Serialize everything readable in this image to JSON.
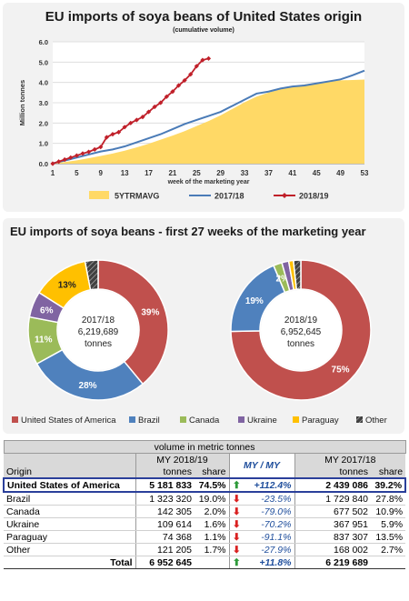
{
  "chart_data": [
    {
      "type": "area",
      "title": "EU imports of soya beans of United States origin",
      "subtitle": "(cumulative volume)",
      "xlabel": "week of the marketing year",
      "ylabel": "Million tonnes",
      "ylim": [
        0,
        6
      ],
      "yticks": [
        "0.0",
        "1.0",
        "2.0",
        "3.0",
        "4.0",
        "5.0",
        "6.0"
      ],
      "xticks": [
        "1",
        "5",
        "9",
        "13",
        "17",
        "21",
        "25",
        "29",
        "33",
        "37",
        "41",
        "45",
        "49",
        "53"
      ],
      "legend_position": "bottom",
      "series": [
        {
          "name": "5YTRMAVG",
          "kind": "area",
          "color": "#ffd966",
          "x": [
            1,
            3,
            5,
            7,
            9,
            11,
            13,
            15,
            17,
            19,
            21,
            23,
            25,
            27,
            29,
            31,
            33,
            35,
            37,
            39,
            41,
            43,
            45,
            47,
            49,
            51,
            53
          ],
          "values": [
            0.02,
            0.08,
            0.16,
            0.27,
            0.38,
            0.5,
            0.64,
            0.8,
            0.98,
            1.18,
            1.38,
            1.6,
            1.85,
            2.1,
            2.38,
            2.7,
            3.02,
            3.3,
            3.5,
            3.66,
            3.78,
            3.9,
            3.98,
            4.05,
            4.1,
            4.12,
            4.14
          ]
        },
        {
          "name": "2017/18",
          "kind": "line",
          "color": "#4a7bb7",
          "x": [
            1,
            3,
            5,
            7,
            9,
            11,
            13,
            15,
            17,
            19,
            21,
            23,
            25,
            27,
            29,
            31,
            33,
            35,
            37,
            39,
            41,
            43,
            45,
            47,
            49,
            51,
            53
          ],
          "values": [
            0.02,
            0.15,
            0.3,
            0.45,
            0.6,
            0.7,
            0.85,
            1.05,
            1.25,
            1.45,
            1.7,
            1.95,
            2.15,
            2.35,
            2.55,
            2.85,
            3.15,
            3.45,
            3.55,
            3.7,
            3.8,
            3.85,
            3.95,
            4.05,
            4.15,
            4.35,
            4.58
          ]
        },
        {
          "name": "2018/19",
          "kind": "line-marker",
          "color": "#c0202a",
          "x": [
            1,
            2,
            3,
            4,
            5,
            6,
            7,
            8,
            9,
            10,
            11,
            12,
            13,
            14,
            15,
            16,
            17,
            18,
            19,
            20,
            21,
            22,
            23,
            24,
            25,
            26,
            27
          ],
          "values": [
            0.0,
            0.1,
            0.2,
            0.3,
            0.4,
            0.5,
            0.58,
            0.7,
            0.82,
            1.3,
            1.45,
            1.55,
            1.8,
            2.0,
            2.15,
            2.3,
            2.55,
            2.8,
            3.0,
            3.3,
            3.55,
            3.85,
            4.1,
            4.4,
            4.8,
            5.1,
            5.18
          ]
        }
      ]
    },
    {
      "type": "pie",
      "title": "EU imports of soya beans - first 27 weeks of the marketing year",
      "center_label": [
        "2017/18",
        "6,219,689",
        "tonnes"
      ],
      "slices": [
        {
          "name": "United States of America",
          "value": 39,
          "label": "39%",
          "color": "#c0504d"
        },
        {
          "name": "Brazil",
          "value": 28,
          "label": "28%",
          "color": "#4f81bd"
        },
        {
          "name": "Canada",
          "value": 11,
          "label": "11%",
          "color": "#9bbb59"
        },
        {
          "name": "Ukraine",
          "value": 6,
          "label": "6%",
          "color": "#8064a2"
        },
        {
          "name": "Paraguay",
          "value": 13,
          "label": "13%",
          "color": "#ffc000"
        },
        {
          "name": "Other",
          "value": 3,
          "label": "",
          "color": "#404040"
        }
      ]
    },
    {
      "type": "pie",
      "center_label": [
        "2018/19",
        "6,952,645",
        "tonnes"
      ],
      "slices": [
        {
          "name": "United States of America",
          "value": 75,
          "label": "75%",
          "color": "#c0504d"
        },
        {
          "name": "Brazil",
          "value": 19,
          "label": "19%",
          "color": "#4f81bd"
        },
        {
          "name": "Canada",
          "value": 2,
          "label": "2%",
          "color": "#9bbb59"
        },
        {
          "name": "Ukraine",
          "value": 1.6,
          "label": "",
          "color": "#8064a2"
        },
        {
          "name": "Paraguay",
          "value": 1.1,
          "label": "",
          "color": "#ffc000"
        },
        {
          "name": "Other",
          "value": 1.7,
          "label": "",
          "color": "#404040"
        }
      ]
    },
    {
      "type": "table",
      "super_header": "volume in metric tonnes",
      "col_groups": [
        "MY 2018/19",
        "MY / MY",
        "MY 2017/18"
      ],
      "columns": [
        "Origin",
        "tonnes",
        "share",
        "tonnes",
        "share"
      ],
      "rows": [
        {
          "origin": "United States of America",
          "t1": "5 181 833",
          "s1": "74.5%",
          "dir": "up",
          "change": "+112.4%",
          "t2": "2 439 086",
          "s2": "39.2%",
          "highlight": true
        },
        {
          "origin": "Brazil",
          "t1": "1 323 320",
          "s1": "19.0%",
          "dir": "down",
          "change": "-23.5%",
          "t2": "1 729 840",
          "s2": "27.8%"
        },
        {
          "origin": "Canada",
          "t1": "142 305",
          "s1": "2.0%",
          "dir": "down",
          "change": "-79.0%",
          "t2": "677 502",
          "s2": "10.9%"
        },
        {
          "origin": "Ukraine",
          "t1": "109 614",
          "s1": "1.6%",
          "dir": "down",
          "change": "-70.2%",
          "t2": "367 951",
          "s2": "5.9%"
        },
        {
          "origin": "Paraguay",
          "t1": "74 368",
          "s1": "1.1%",
          "dir": "down",
          "change": "-91.1%",
          "t2": "837 307",
          "s2": "13.5%"
        },
        {
          "origin": "Other",
          "t1": "121 205",
          "s1": "1.7%",
          "dir": "down",
          "change": "-27.9%",
          "t2": "168 002",
          "s2": "2.7%"
        }
      ],
      "total": {
        "label": "Total",
        "t1": "6 952 645",
        "dir": "up",
        "change": "+11.8%",
        "t2": "6 219 689"
      }
    }
  ]
}
